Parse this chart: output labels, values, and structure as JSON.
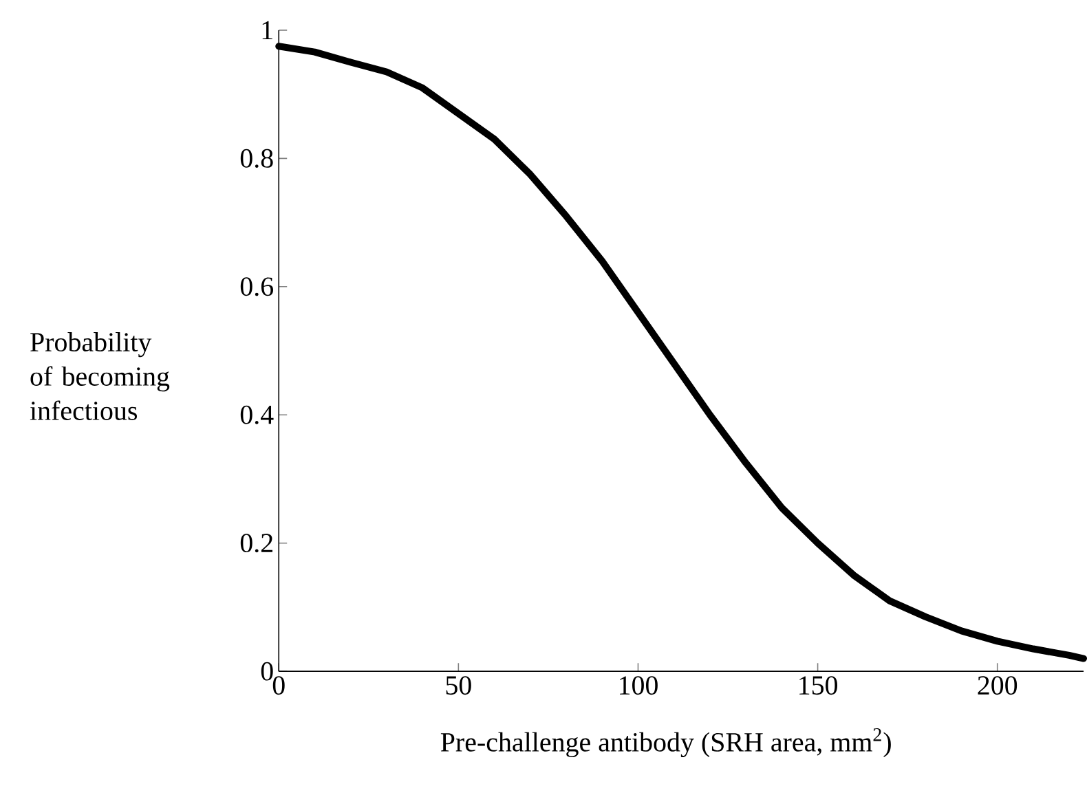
{
  "chart_data": {
    "type": "line",
    "xlabel": "Pre-challenge antibody (SRH area, mm$^{2}$)",
    "ylabel": "Probability of becoming infectious",
    "x": [
      0,
      10,
      20,
      30,
      40,
      50,
      60,
      70,
      80,
      90,
      100,
      110,
      120,
      130,
      140,
      150,
      160,
      170,
      180,
      190,
      200,
      210,
      220,
      224
    ],
    "series": [
      {
        "color": "#000000",
        "values": [
          0.975,
          0.966,
          0.95,
          0.935,
          0.91,
          0.87,
          0.83,
          0.775,
          0.71,
          0.64,
          0.56,
          0.48,
          0.4,
          0.325,
          0.255,
          0.2,
          0.15,
          0.11,
          0.085,
          0.063,
          0.047,
          0.035,
          0.025,
          0.02
        ]
      }
    ],
    "xlim": [
      0,
      224
    ],
    "ylim": [
      0,
      1
    ],
    "xticks": [
      0,
      50,
      100,
      150,
      200
    ],
    "yticks": [
      0,
      0.2,
      0.4,
      0.6,
      0.8,
      1
    ],
    "grid": false,
    "marker": "none",
    "line_style": "solid"
  }
}
